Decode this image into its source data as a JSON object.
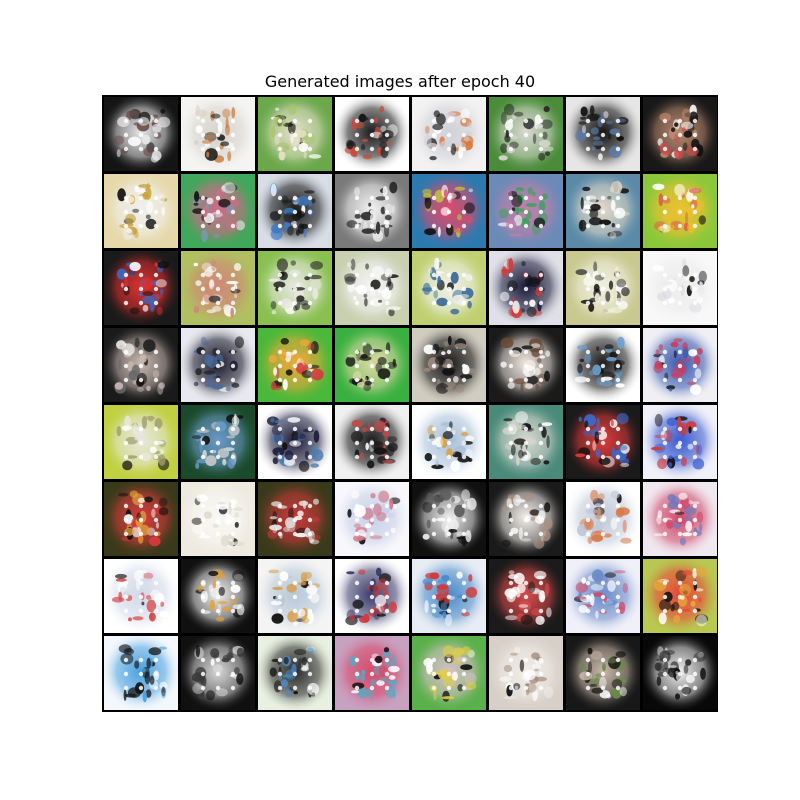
{
  "title": "Generated images after epoch 40",
  "grid": {
    "rows": 8,
    "cols": 8
  },
  "tiles": [
    {
      "bg": "#141414",
      "mid": "#e8e8e8",
      "accent": "#6a4a4a"
    },
    {
      "bg": "#f4f4f2",
      "mid": "#d8d4cc",
      "accent": "#c8783a"
    },
    {
      "bg": "#6aa84a",
      "mid": "#e6e0c8",
      "accent": "#a9c46a"
    },
    {
      "bg": "#ffffff",
      "mid": "#1a1a1a",
      "accent": "#c94a3a"
    },
    {
      "bg": "#f2f2f2",
      "mid": "#d0d0d8",
      "accent": "#d87a3a"
    },
    {
      "bg": "#4a8c3a",
      "mid": "#d8d8d0",
      "accent": "#2a2a2a"
    },
    {
      "bg": "#e6e6e6",
      "mid": "#141414",
      "accent": "#5a7aa8"
    },
    {
      "bg": "#181818",
      "mid": "#ba8a70",
      "accent": "#c94a4a"
    },
    {
      "bg": "#e6d8a8",
      "mid": "#f0f0f0",
      "accent": "#c9a23a"
    },
    {
      "bg": "#3fa85a",
      "mid": "#d06a88",
      "accent": "#7a9ab8"
    },
    {
      "bg": "#d8dde6",
      "mid": "#1a1a1a",
      "accent": "#3a7ac8"
    },
    {
      "bg": "#7a7a7a",
      "mid": "#f2f2f2",
      "accent": "#1a1a1a"
    },
    {
      "bg": "#2a7ab0",
      "mid": "#e04a6a",
      "accent": "#c0c040"
    },
    {
      "bg": "#6a8ab8",
      "mid": "#c080a8",
      "accent": "#40a060"
    },
    {
      "bg": "#5a8aa8",
      "mid": "#e0d8c8",
      "accent": "#1a1a1a"
    },
    {
      "bg": "#8ac83a",
      "mid": "#f0c030",
      "accent": "#e05a4a"
    },
    {
      "bg": "#1a1a1a",
      "mid": "#e03030",
      "accent": "#3a6ac8"
    },
    {
      "bg": "#b0c060",
      "mid": "#d08878",
      "accent": "#f0f0e8"
    },
    {
      "bg": "#8ac050",
      "mid": "#e8e8e0",
      "accent": "#1a1a1a"
    },
    {
      "bg": "#c8d0b0",
      "mid": "#f4f4f4",
      "accent": "#2a2a2a"
    },
    {
      "bg": "#c0d070",
      "mid": "#f0f0ec",
      "accent": "#3a6a9a"
    },
    {
      "bg": "#e0e0e8",
      "mid": "#1a1a3a",
      "accent": "#d03a3a"
    },
    {
      "bg": "#c8c890",
      "mid": "#f0f0e0",
      "accent": "#2a2a2a"
    },
    {
      "bg": "#f8f8f8",
      "mid": "#ececec",
      "accent": "#d8d8e0"
    },
    {
      "bg": "#1a1a1a",
      "mid": "#c8b8b0",
      "accent": "#6a6a6a"
    },
    {
      "bg": "#e8e8f0",
      "mid": "#1a1a2a",
      "accent": "#4a6a9a"
    },
    {
      "bg": "#4ab83a",
      "mid": "#e8a83a",
      "accent": "#d04040"
    },
    {
      "bg": "#3ab040",
      "mid": "#d8d8a0",
      "accent": "#1a1a1a"
    },
    {
      "bg": "#d0ccc0",
      "mid": "#1a1a1a",
      "accent": "#9a8a80"
    },
    {
      "bg": "#1a1a1a",
      "mid": "#f0e8e0",
      "accent": "#6a4a3a"
    },
    {
      "bg": "#ffffff",
      "mid": "#1a1a1a",
      "accent": "#6aa0d0"
    },
    {
      "bg": "#f0f0f4",
      "mid": "#3a5ab0",
      "accent": "#d03a5a"
    },
    {
      "bg": "#c0d040",
      "mid": "#e8e8e0",
      "accent": "#a0a070"
    },
    {
      "bg": "#1a4a2a",
      "mid": "#6a9ac8",
      "accent": "#c8c8c8"
    },
    {
      "bg": "#ffffff",
      "mid": "#1a1a3a",
      "accent": "#4a7ab0"
    },
    {
      "bg": "#f0f0f0",
      "mid": "#1a1a1a",
      "accent": "#c04a4a"
    },
    {
      "bg": "#ffffff",
      "mid": "#a8c0d8",
      "accent": "#d8a040"
    },
    {
      "bg": "#4a8a7a",
      "mid": "#d8d8d0",
      "accent": "#1a1a1a"
    },
    {
      "bg": "#1a1a1a",
      "mid": "#e03a3a",
      "accent": "#3a6ac8"
    },
    {
      "bg": "#f0f0f8",
      "mid": "#3a5ad0",
      "accent": "#d03a3a"
    },
    {
      "bg": "#3a3a1a",
      "mid": "#d83a3a",
      "accent": "#e0a03a"
    },
    {
      "bg": "#eeeae0",
      "mid": "#f8f8f4",
      "accent": "#e0dcd0"
    },
    {
      "bg": "#3a3a1a",
      "mid": "#c83a3a",
      "accent": "#e0e0e0"
    },
    {
      "bg": "#f8f8fc",
      "mid": "#c8d0e8",
      "accent": "#d07a8a"
    },
    {
      "bg": "#101010",
      "mid": "#f0f0f0",
      "accent": "#5a5a5a"
    },
    {
      "bg": "#1a1a1a",
      "mid": "#f4f0ec",
      "accent": "#a89080"
    },
    {
      "bg": "#ffffff",
      "mid": "#c0c8d8",
      "accent": "#d87a4a"
    },
    {
      "bg": "#f0e8f0",
      "mid": "#d04a6a",
      "accent": "#6a7ac0"
    },
    {
      "bg": "#ffffff",
      "mid": "#d0d8e8",
      "accent": "#d84a4a"
    },
    {
      "bg": "#101010",
      "mid": "#f0f0f0",
      "accent": "#e8a030"
    },
    {
      "bg": "#f4f4f4",
      "mid": "#b8c8d8",
      "accent": "#d8a050"
    },
    {
      "bg": "#ffffff",
      "mid": "#3a3a6a",
      "accent": "#d03a3a"
    },
    {
      "bg": "#e8ecf4",
      "mid": "#4a8ac8",
      "accent": "#d03a3a"
    },
    {
      "bg": "#1a1a1a",
      "mid": "#d84a4a",
      "accent": "#f0f0f0"
    },
    {
      "bg": "#f0f0f8",
      "mid": "#6a8ac8",
      "accent": "#d04a6a"
    },
    {
      "bg": "#b8c850",
      "mid": "#e8483a",
      "accent": "#e8a83a"
    },
    {
      "bg": "#f4f8fc",
      "mid": "#4aa0e0",
      "accent": "#1a1a1a"
    },
    {
      "bg": "#101010",
      "mid": "#d8d8d8",
      "accent": "#3a3a3a"
    },
    {
      "bg": "#e8f0e0",
      "mid": "#2a2a2a",
      "accent": "#4a8ac8"
    },
    {
      "bg": "#c8a0c0",
      "mid": "#d84a6a",
      "accent": "#4ab0c8"
    },
    {
      "bg": "#5ab04a",
      "mid": "#d8c0c8",
      "accent": "#e0d040"
    },
    {
      "bg": "#d8d0c8",
      "mid": "#f0ece8",
      "accent": "#a08878"
    },
    {
      "bg": "#181818",
      "mid": "#c8b8a8",
      "accent": "#6a8a4a"
    },
    {
      "bg": "#080808",
      "mid": "#f0f0f0",
      "accent": "#2a2a2a"
    }
  ]
}
